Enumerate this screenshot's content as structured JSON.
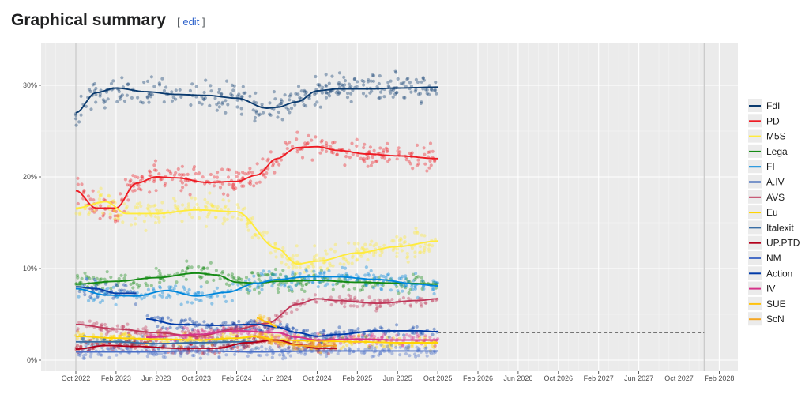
{
  "heading": {
    "title": "Graphical summary",
    "edit_open": "[",
    "edit_label": "edit",
    "edit_close": "]"
  },
  "chart_data": {
    "type": "scatter",
    "title": "",
    "xlabel": "",
    "ylabel": "",
    "ylim": [
      -1.2,
      34.5
    ],
    "y_ticks": [
      {
        "value": 0,
        "label": "0%"
      },
      {
        "value": 10,
        "label": "10%"
      },
      {
        "value": 20,
        "label": "20%"
      },
      {
        "value": 30,
        "label": "30%"
      }
    ],
    "x_ticks": [
      "Oct 2022",
      "Feb 2023",
      "Jun 2023",
      "Oct 2023",
      "Feb 2024",
      "Jun 2024",
      "Oct 2024",
      "Feb 2025",
      "Jun 2025",
      "Oct 2025",
      "Feb 2026",
      "Jun 2026",
      "Oct 2026",
      "Feb 2027",
      "Jun 2027",
      "Oct 2027",
      "Feb 2028"
    ],
    "x_unit": "months since Oct 2022",
    "xlim": [
      -5.4,
      64.8
    ],
    "grid": true,
    "legend_position": "right",
    "threshold": {
      "value": 3,
      "from": 36,
      "to": 62.5,
      "style": "dashed",
      "color": "#4d4d4d"
    },
    "election_lines": [
      0,
      62.5
    ],
    "series": [
      {
        "name": "FdI",
        "color": "#0a3a6e",
        "x": [
          0,
          2,
          4,
          7,
          10,
          13,
          16,
          19,
          20,
          22,
          24,
          26,
          29,
          32,
          36
        ],
        "values": [
          27,
          29.2,
          29.7,
          29.3,
          29.0,
          28.9,
          28.6,
          27.5,
          27.6,
          28.2,
          29.4,
          29.6,
          29.6,
          29.7,
          29.8
        ]
      },
      {
        "name": "PD",
        "color": "#ee1c24",
        "x": [
          0,
          2,
          4,
          6,
          8,
          10,
          13,
          16,
          18,
          20,
          22,
          24,
          26,
          29,
          32,
          36
        ],
        "values": [
          18.5,
          16.6,
          16.6,
          19.3,
          20.0,
          19.9,
          19.4,
          19.5,
          20.2,
          22.0,
          23.2,
          23.3,
          22.9,
          22.5,
          22.3,
          22.0
        ]
      },
      {
        "name": "M5S",
        "color": "#ffeb3b",
        "x": [
          0,
          3,
          5,
          8,
          12,
          16,
          20,
          22,
          24,
          28,
          32,
          36
        ],
        "values": [
          16.6,
          17.3,
          16.0,
          16.0,
          16.4,
          16.2,
          12.2,
          10.5,
          10.8,
          11.7,
          12.4,
          13.0
        ]
      },
      {
        "name": "Lega",
        "color": "#158b15",
        "x": [
          0,
          4,
          8,
          12,
          14,
          16,
          18,
          20,
          24,
          28,
          32,
          36
        ],
        "values": [
          8.3,
          8.6,
          9.0,
          9.5,
          9.3,
          8.5,
          8.4,
          8.6,
          8.7,
          8.5,
          8.4,
          8.3
        ]
      },
      {
        "name": "FI",
        "color": "#0087dc",
        "x": [
          0,
          3,
          6,
          9,
          12,
          15,
          18,
          20,
          23,
          26,
          30,
          34,
          36
        ],
        "values": [
          7.8,
          7.1,
          7.0,
          7.6,
          7.0,
          7.4,
          8.4,
          8.8,
          9.1,
          9.1,
          8.8,
          8.3,
          8.1
        ]
      },
      {
        "name": "A.IV",
        "color": "#0a3fa8",
        "x": [
          0,
          2,
          4,
          6
        ],
        "values": [
          8.0,
          7.8,
          7.3,
          7.3
        ]
      },
      {
        "name": "AVS",
        "color": "#c0385a",
        "x": [
          0,
          4,
          8,
          12,
          16,
          19,
          22,
          24,
          26,
          30,
          34,
          36
        ],
        "values": [
          3.9,
          3.4,
          3.0,
          2.6,
          3.4,
          4.0,
          6.1,
          6.7,
          6.5,
          6.2,
          6.5,
          6.7
        ]
      },
      {
        "name": "Eu",
        "color": "#ffd400",
        "x": [
          0,
          4,
          8,
          12,
          16,
          18,
          20,
          24,
          28,
          32,
          36
        ],
        "values": [
          2.6,
          2.4,
          2.3,
          2.2,
          2.4,
          2.6,
          2.2,
          2.1,
          2.0,
          1.9,
          1.9
        ]
      },
      {
        "name": "Italexit",
        "color": "#3a6ea5",
        "x": [
          0,
          4,
          8,
          12,
          16,
          18
        ],
        "values": [
          2.0,
          2.0,
          1.8,
          1.9,
          2.0,
          2.0
        ]
      },
      {
        "name": "UP.PTD",
        "color": "#b3001b",
        "x": [
          0,
          3,
          6,
          10,
          14,
          17,
          20,
          22,
          24,
          26
        ],
        "values": [
          1.2,
          1.6,
          1.5,
          1.3,
          1.3,
          1.9,
          2.2,
          1.7,
          1.3,
          1.3
        ]
      },
      {
        "name": "NM",
        "color": "#4a6fc7",
        "x": [
          0,
          6,
          12,
          18,
          24,
          30,
          36
        ],
        "values": [
          0.9,
          0.9,
          1.0,
          0.9,
          1.0,
          1.0,
          1.0
        ]
      },
      {
        "name": "Action",
        "color": "#003aa8",
        "x": [
          7,
          10,
          14,
          18,
          20,
          22,
          24,
          26,
          30,
          34,
          36
        ],
        "values": [
          4.5,
          3.9,
          3.8,
          3.9,
          3.6,
          3.0,
          2.6,
          2.8,
          3.2,
          3.2,
          3.1
        ]
      },
      {
        "name": "IV",
        "color": "#d6338a",
        "x": [
          7,
          12,
          16,
          20,
          22,
          24,
          28,
          32,
          36
        ],
        "values": [
          2.5,
          2.8,
          3.2,
          3.0,
          2.5,
          2.2,
          2.3,
          2.2,
          2.2
        ]
      },
      {
        "name": "SUE",
        "color": "#ffc20e",
        "x": [
          18,
          19,
          20
        ],
        "values": [
          4.6,
          4.2,
          3.6
        ]
      },
      {
        "name": "ScN",
        "color": "#f5a623",
        "x": [
          18,
          20,
          22,
          24,
          26
        ],
        "values": [
          2.5,
          2.0,
          1.6,
          1.5,
          1.6
        ]
      }
    ]
  }
}
